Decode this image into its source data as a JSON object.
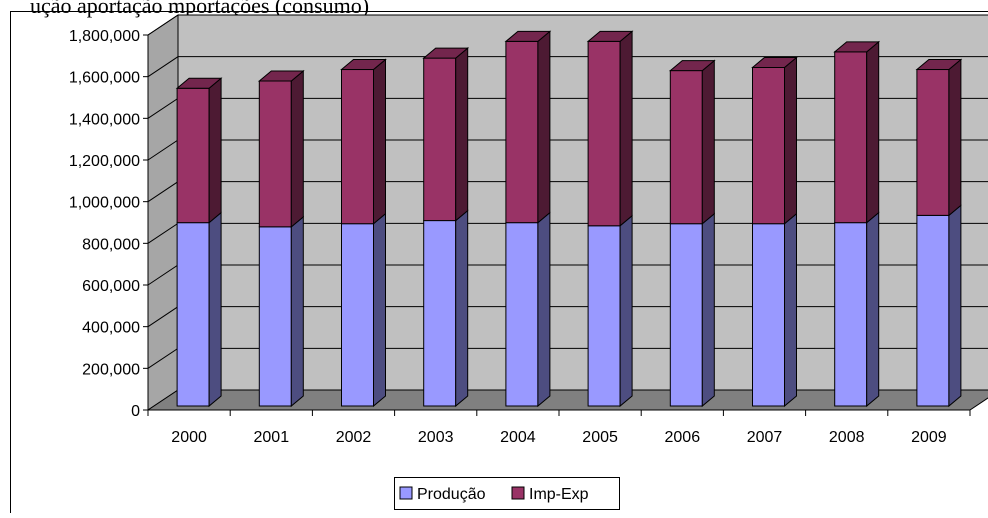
{
  "chart_data": {
    "type": "bar",
    "stacked": true,
    "three_d": true,
    "title_visible_fragment": "ução       aportação           mportações      (consumo)",
    "categories": [
      "2000",
      "2001",
      "2002",
      "2003",
      "2004",
      "2005",
      "2006",
      "2007",
      "2008",
      "2009"
    ],
    "series": [
      {
        "name": "Produção",
        "color": "#9999ff",
        "values": [
          880000,
          860000,
          875000,
          890000,
          880000,
          865000,
          875000,
          875000,
          880000,
          915000
        ]
      },
      {
        "name": "Imp-Exp",
        "color": "#993366",
        "values": [
          645000,
          700000,
          740000,
          780000,
          870000,
          885000,
          735000,
          750000,
          820000,
          700000
        ]
      }
    ],
    "ylim": [
      0,
      1800000
    ],
    "yticks": [
      "0",
      "200,000",
      "400,000",
      "600,000",
      "800,000",
      "1,000,000",
      "1,200,000",
      "1,400,000",
      "1,600,000",
      "1,800,000"
    ],
    "grid": true,
    "legend_position": "bottom"
  }
}
